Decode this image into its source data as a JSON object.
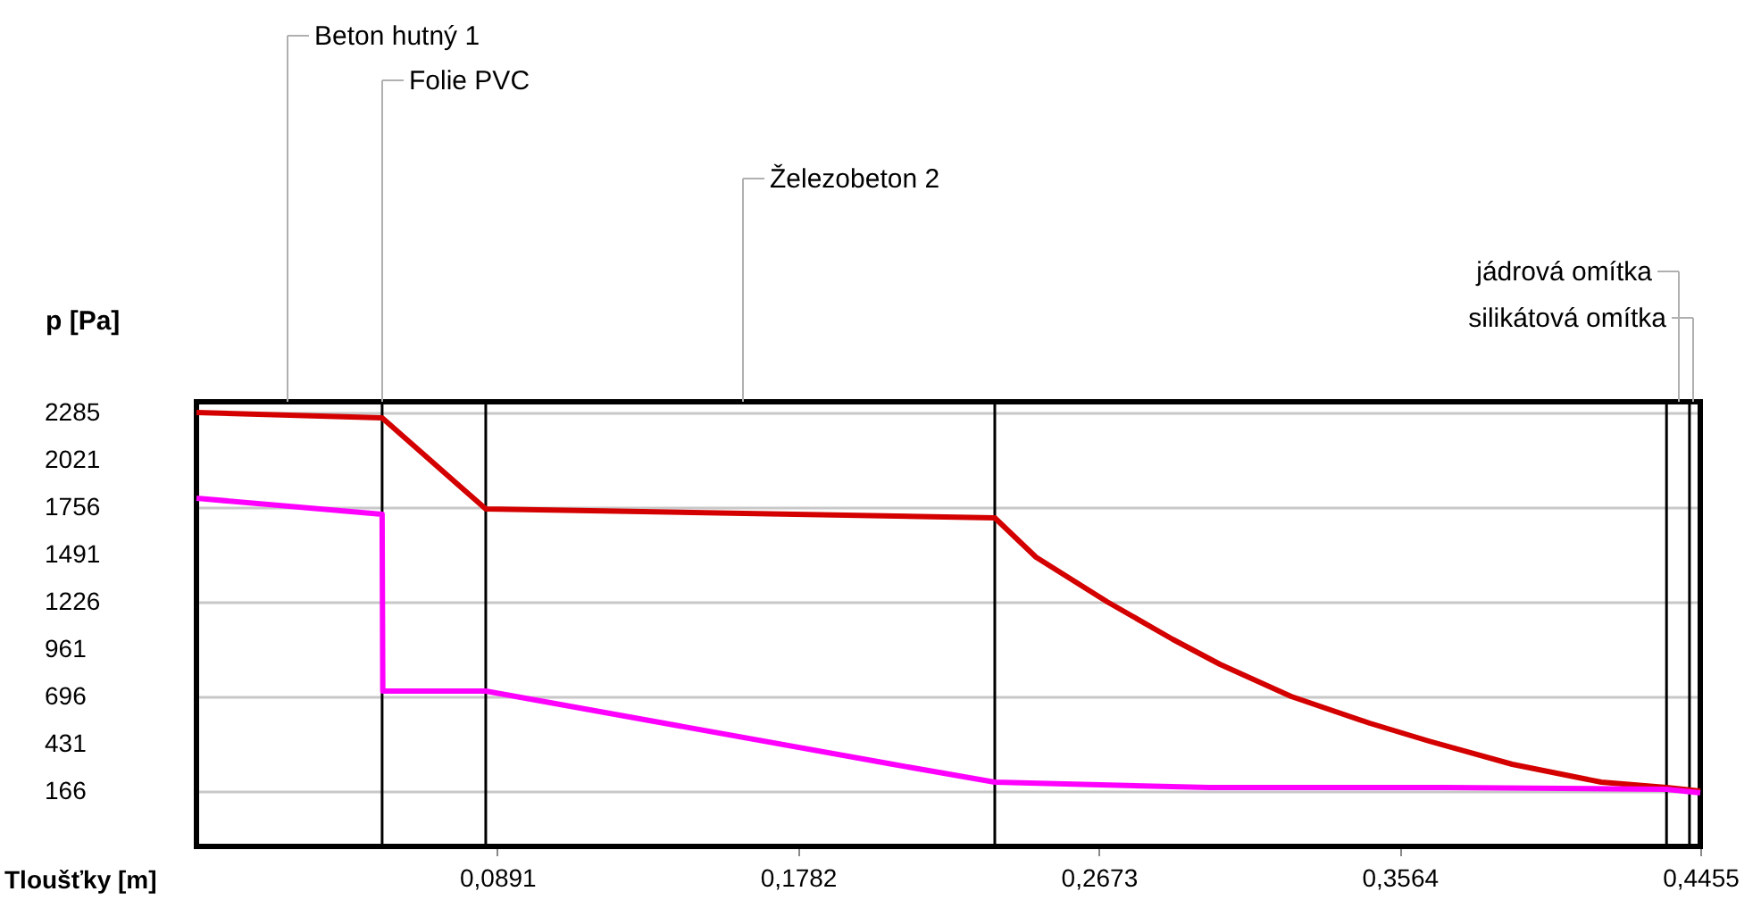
{
  "chart_data": {
    "type": "line",
    "xlabel": "Tloušťky [m]",
    "ylabel": "p [Pa]",
    "xlim": [
      0,
      0.4455
    ],
    "ylim": [
      -140,
      2350
    ],
    "xticks": [
      {
        "value": 0.0891,
        "label": "0,0891"
      },
      {
        "value": 0.1782,
        "label": "0,1782"
      },
      {
        "value": 0.2673,
        "label": "0,2673"
      },
      {
        "value": 0.3564,
        "label": "0,3564"
      },
      {
        "value": 0.4455,
        "label": "0,4455"
      }
    ],
    "yticks": [
      166,
      431,
      696,
      961,
      1226,
      1491,
      1756,
      2021,
      2285
    ],
    "grid": "y",
    "marker": "none",
    "line_style": "solid",
    "series": [
      {
        "color": "#d40000",
        "x": [
          0,
          0.055,
          0.0857,
          0.2365,
          0.2487,
          0.2698,
          0.2892,
          0.3032,
          0.3243,
          0.3476,
          0.3651,
          0.3898,
          0.4162,
          0.4355,
          0.4455
        ],
        "values": [
          2290,
          2260,
          1750,
          1700,
          1480,
          1230,
          1020,
          880,
          700,
          550,
          450,
          320,
          220,
          190,
          170
        ]
      },
      {
        "color": "#ff00ff",
        "x": [
          0,
          0.055,
          0.0552,
          0.0857,
          0.2063,
          0.2365,
          0.3,
          0.37,
          0.4355,
          0.4455
        ],
        "values": [
          1810,
          1720,
          730,
          730,
          320,
          220,
          190,
          190,
          180,
          160
        ]
      }
    ],
    "ref_lines": [
      {
        "axis": "x",
        "value": 0.055,
        "color": "#000000"
      },
      {
        "axis": "x",
        "value": 0.0857,
        "color": "#000000"
      },
      {
        "axis": "x",
        "value": 0.2365,
        "color": "#000000"
      },
      {
        "axis": "x",
        "value": 0.4355,
        "color": "#000000"
      },
      {
        "axis": "x",
        "value": 0.4423,
        "color": "#000000"
      }
    ],
    "annotations": [
      "Beton hutný 1",
      "Folie PVC",
      "Železobeton 2",
      "jádrová omítka",
      "silikátová omítka"
    ]
  }
}
